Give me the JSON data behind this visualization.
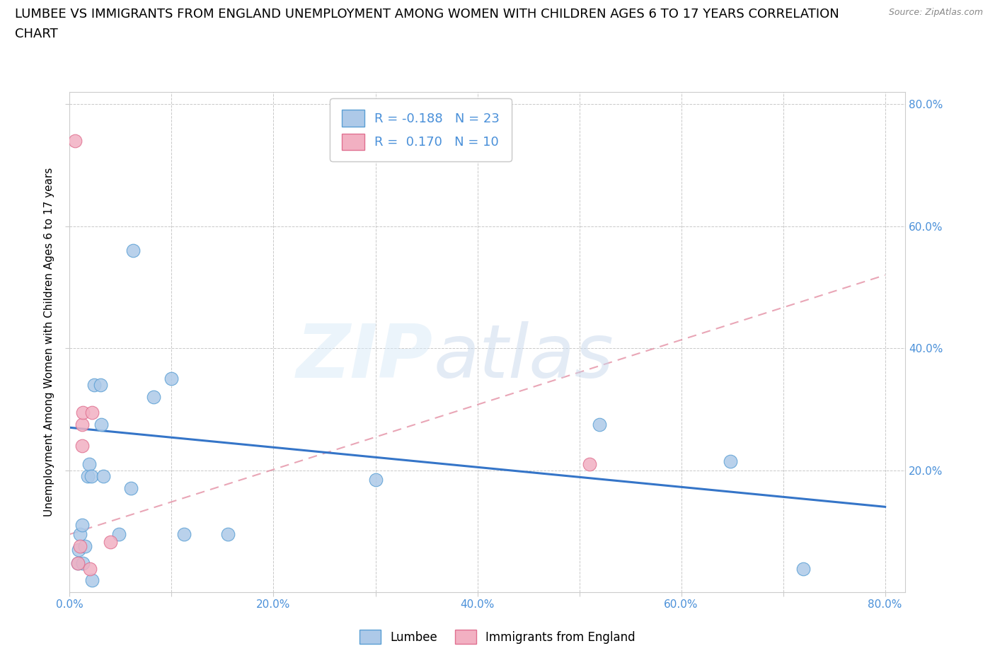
{
  "title_line1": "LUMBEE VS IMMIGRANTS FROM ENGLAND UNEMPLOYMENT AMONG WOMEN WITH CHILDREN AGES 6 TO 17 YEARS CORRELATION",
  "title_line2": "CHART",
  "source": "Source: ZipAtlas.com",
  "ylabel": "Unemployment Among Women with Children Ages 6 to 17 years",
  "xlim": [
    0.0,
    0.82
  ],
  "ylim": [
    0.0,
    0.82
  ],
  "xtick_labels": [
    "0.0%",
    "",
    "20.0%",
    "",
    "40.0%",
    "",
    "60.0%",
    "",
    "80.0%"
  ],
  "xtick_vals": [
    0.0,
    0.1,
    0.2,
    0.3,
    0.4,
    0.5,
    0.6,
    0.7,
    0.8
  ],
  "ytick_labels": [
    "20.0%",
    "40.0%",
    "60.0%",
    "80.0%"
  ],
  "ytick_vals": [
    0.2,
    0.4,
    0.6,
    0.8
  ],
  "lumbee_color": "#adc9e8",
  "england_color": "#f2b0c2",
  "lumbee_edge": "#5a9fd4",
  "england_edge": "#e07090",
  "trend_lumbee_color": "#3575c8",
  "trend_england_color": "#e08098",
  "tick_color": "#4a90d9",
  "legend_r_color": "#4a90d9",
  "legend_label_color": "#333333",
  "lumbee_x": [
    0.008,
    0.009,
    0.01,
    0.012,
    0.013,
    0.015,
    0.018,
    0.019,
    0.021,
    0.022,
    0.024,
    0.03,
    0.031,
    0.033,
    0.048,
    0.06,
    0.062,
    0.082,
    0.1,
    0.112,
    0.155,
    0.3,
    0.52,
    0.648,
    0.72
  ],
  "lumbee_y": [
    0.048,
    0.07,
    0.095,
    0.11,
    0.048,
    0.075,
    0.19,
    0.21,
    0.19,
    0.02,
    0.34,
    0.34,
    0.275,
    0.19,
    0.095,
    0.17,
    0.56,
    0.32,
    0.35,
    0.095,
    0.095,
    0.185,
    0.275,
    0.215,
    0.038
  ],
  "england_x": [
    0.005,
    0.008,
    0.01,
    0.012,
    0.012,
    0.013,
    0.02,
    0.022,
    0.04,
    0.51
  ],
  "england_y": [
    0.74,
    0.048,
    0.075,
    0.24,
    0.275,
    0.295,
    0.038,
    0.295,
    0.082,
    0.21
  ],
  "lumbee_trend_x": [
    0.0,
    0.8
  ],
  "lumbee_trend_y": [
    0.27,
    0.14
  ],
  "england_trend_x": [
    0.0,
    0.8
  ],
  "england_trend_y": [
    0.095,
    0.52
  ],
  "marker_size": 180
}
